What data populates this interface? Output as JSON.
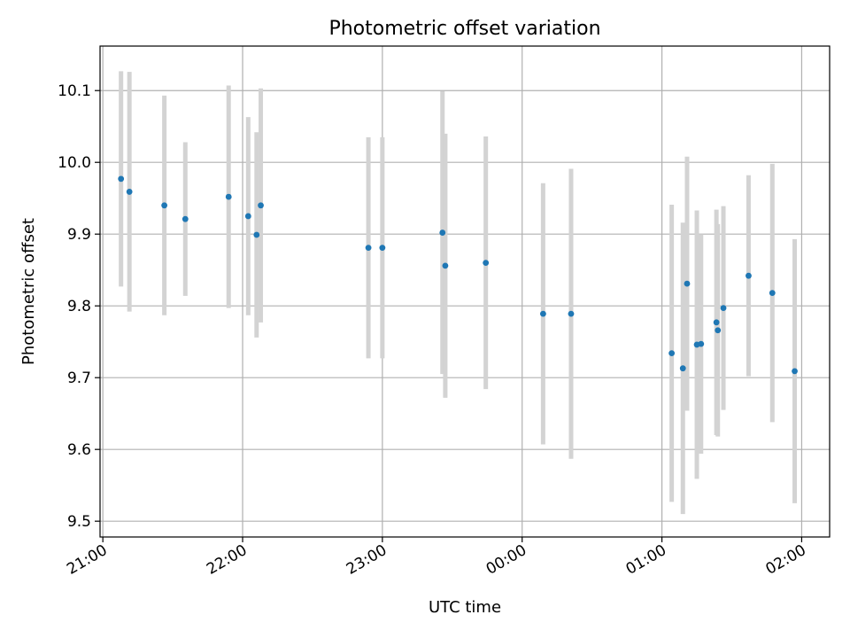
{
  "chart_data": {
    "type": "scatter",
    "title": "Photometric offset variation",
    "xlabel": "UTC time",
    "ylabel": "Photometric offset",
    "x_unit": "UTC hours (24+ after midnight)",
    "xlim": [
      20.98,
      26.2
    ],
    "ylim": [
      9.478,
      10.162
    ],
    "xticks": [
      {
        "value": 21,
        "label": "21:00"
      },
      {
        "value": 22,
        "label": "22:00"
      },
      {
        "value": 23,
        "label": "23:00"
      },
      {
        "value": 24,
        "label": "00:00"
      },
      {
        "value": 25,
        "label": "01:00"
      },
      {
        "value": 26,
        "label": "02:00"
      }
    ],
    "yticks": [
      {
        "value": 9.5,
        "label": "9.5"
      },
      {
        "value": 9.6,
        "label": "9.6"
      },
      {
        "value": 9.7,
        "label": "9.7"
      },
      {
        "value": 9.8,
        "label": "9.8"
      },
      {
        "value": 9.9,
        "label": "9.9"
      },
      {
        "value": 10.0,
        "label": "10.0"
      },
      {
        "value": 10.1,
        "label": "10.1"
      }
    ],
    "grid": true,
    "series": [
      {
        "color": "#1f77b4",
        "errorbar_color": "#d3d3d3",
        "points": [
          {
            "x": 21.13,
            "y": 9.977,
            "err": 0.15
          },
          {
            "x": 21.19,
            "y": 9.959,
            "err": 0.167
          },
          {
            "x": 21.44,
            "y": 9.94,
            "err": 0.153
          },
          {
            "x": 21.59,
            "y": 9.921,
            "err": 0.107
          },
          {
            "x": 21.9,
            "y": 9.952,
            "err": 0.155
          },
          {
            "x": 22.04,
            "y": 9.925,
            "err": 0.138
          },
          {
            "x": 22.1,
            "y": 9.899,
            "err": 0.143
          },
          {
            "x": 22.13,
            "y": 9.94,
            "err": 0.163
          },
          {
            "x": 22.9,
            "y": 9.881,
            "err": 0.154
          },
          {
            "x": 23.0,
            "y": 9.881,
            "err": 0.154
          },
          {
            "x": 23.43,
            "y": 9.902,
            "err": 0.197
          },
          {
            "x": 23.45,
            "y": 9.856,
            "err": 0.184
          },
          {
            "x": 23.74,
            "y": 9.86,
            "err": 0.176
          },
          {
            "x": 24.15,
            "y": 9.789,
            "err": 0.182
          },
          {
            "x": 24.35,
            "y": 9.789,
            "err": 0.202
          },
          {
            "x": 25.07,
            "y": 9.734,
            "err": 0.207
          },
          {
            "x": 25.15,
            "y": 9.713,
            "err": 0.203
          },
          {
            "x": 25.18,
            "y": 9.831,
            "err": 0.177
          },
          {
            "x": 25.25,
            "y": 9.746,
            "err": 0.187
          },
          {
            "x": 25.28,
            "y": 9.747,
            "err": 0.153
          },
          {
            "x": 25.39,
            "y": 9.777,
            "err": 0.157
          },
          {
            "x": 25.4,
            "y": 9.766,
            "err": 0.148
          },
          {
            "x": 25.44,
            "y": 9.797,
            "err": 0.142
          },
          {
            "x": 25.62,
            "y": 9.842,
            "err": 0.14
          },
          {
            "x": 25.79,
            "y": 9.818,
            "err": 0.18
          },
          {
            "x": 25.95,
            "y": 9.709,
            "err": 0.184
          }
        ]
      }
    ]
  }
}
